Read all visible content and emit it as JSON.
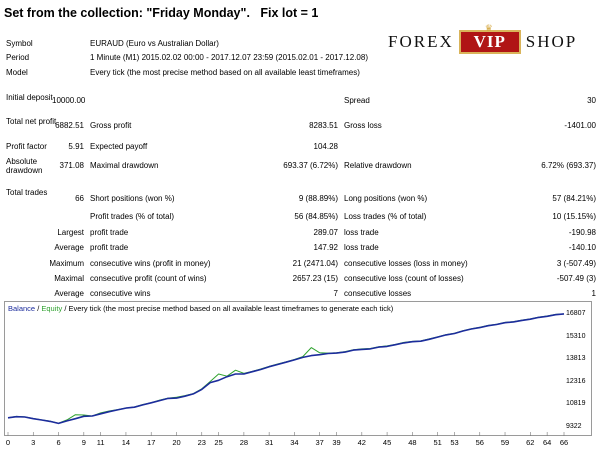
{
  "title": "Set from the collection: \"Friday Monday\".   Fix lot = 1",
  "logo": {
    "left": "FOREX",
    "badge": "VIP",
    "right": "SHOP",
    "colors": {
      "badge_bg": "#b01515",
      "badge_border": "#d9b45a"
    }
  },
  "header": {
    "symbol_label": "Symbol",
    "symbol_value": "EURAUD (Euro vs Australian Dollar)",
    "period_label": "Period",
    "period_value": "1 Minute (M1) 2015.02.02 00:00 - 2017.12.07 23:59 (2015.02.01 - 2017.12.08)",
    "model_label": "Model",
    "model_value": "Every tick (the most precise method based on all available least timeframes)"
  },
  "stats": {
    "initial_deposit_label": "Initial deposit",
    "initial_deposit_value": "10000.00",
    "spread_label": "Spread",
    "spread_value": "30",
    "total_net_profit_label": "Total net profit",
    "total_net_profit_value": "6882.51",
    "gross_profit_label": "Gross profit",
    "gross_profit_value": "8283.51",
    "gross_loss_label": "Gross loss",
    "gross_loss_value": "-1401.00",
    "profit_factor_label": "Profit factor",
    "profit_factor_value": "5.91",
    "expected_payoff_label": "Expected payoff",
    "expected_payoff_value": "104.28",
    "absolute_drawdown_label": "Absolute drawdown",
    "absolute_drawdown_value": "371.08",
    "maximal_drawdown_label": "Maximal drawdown",
    "maximal_drawdown_value": "693.37 (6.72%)",
    "relative_drawdown_label": "Relative drawdown",
    "relative_drawdown_value": "6.72% (693.37)",
    "total_trades_label": "Total trades",
    "total_trades_value": "66",
    "short_positions_label": "Short positions (won %)",
    "short_positions_value": "9 (88.89%)",
    "long_positions_label": "Long positions (won %)",
    "long_positions_value": "57 (84.21%)",
    "profit_trades_label": "Profit trades (% of total)",
    "profit_trades_value": "56 (84.85%)",
    "loss_trades_label": "Loss trades (% of total)",
    "loss_trades_value": "10 (15.15%)",
    "largest_label": "Largest",
    "largest_profit_label": "profit trade",
    "largest_profit_value": "289.07",
    "largest_loss_label": "loss trade",
    "largest_loss_value": "-190.98",
    "average_label": "Average",
    "average_profit_label": "profit trade",
    "average_profit_value": "147.92",
    "average_loss_label": "loss trade",
    "average_loss_value": "-140.10",
    "maximum_label": "Maximum",
    "max_cons_wins_label": "consecutive wins (profit in money)",
    "max_cons_wins_value": "21 (2471.04)",
    "max_cons_losses_label": "consecutive losses (loss in money)",
    "max_cons_losses_value": "3 (-507.49)",
    "maximal_label": "Maximal",
    "maximal_cons_profit_label": "consecutive profit (count of wins)",
    "maximal_cons_profit_value": "2657.23 (15)",
    "maximal_cons_loss_label": "consecutive loss (count of losses)",
    "maximal_cons_loss_value": "-507.49 (3)",
    "avg_cons_label": "Average",
    "avg_cons_wins_label": "consecutive wins",
    "avg_cons_wins_value": "7",
    "avg_cons_losses_label": "consecutive losses",
    "avg_cons_losses_value": "1"
  },
  "chart_legend": {
    "balance": "Balance",
    "sep1": " / ",
    "equity": "Equity",
    "rest": " / Every tick (the most precise method based on all available least timeframes to generate each tick)"
  },
  "chart_data": {
    "type": "line",
    "title": "",
    "xlabel": "",
    "ylabel": "",
    "xlim": [
      0,
      66
    ],
    "ylim": [
      9322,
      16807
    ],
    "x_ticks": [
      "0",
      "3",
      "6",
      "9",
      "11",
      "14",
      "17",
      "20",
      "23",
      "25",
      "28",
      "31",
      "34",
      "37",
      "39",
      "42",
      "45",
      "48",
      "51",
      "53",
      "56",
      "59",
      "62",
      "64",
      "66"
    ],
    "y_ticks": [
      "16807",
      "15310",
      "13813",
      "12316",
      "10819",
      "9322"
    ],
    "colors": {
      "balance": "#1c2c9c",
      "equity": "#2fa22f"
    },
    "series": [
      {
        "name": "Balance",
        "x": [
          0,
          1,
          2,
          3,
          4,
          5,
          6,
          7,
          8,
          9,
          10,
          11,
          12,
          13,
          14,
          15,
          16,
          17,
          18,
          19,
          20,
          21,
          22,
          23,
          24,
          25,
          26,
          27,
          28,
          29,
          30,
          31,
          32,
          33,
          34,
          35,
          36,
          37,
          38,
          39,
          40,
          41,
          42,
          43,
          44,
          45,
          46,
          47,
          48,
          49,
          50,
          51,
          52,
          53,
          54,
          55,
          56,
          57,
          58,
          59,
          60,
          61,
          62,
          63,
          64,
          65,
          66
        ],
        "values": [
          10000,
          10070,
          10050,
          9940,
          9850,
          9760,
          9629,
          9790,
          9940,
          10100,
          10120,
          10260,
          10400,
          10520,
          10640,
          10700,
          10850,
          10990,
          11140,
          11280,
          11300,
          11430,
          11580,
          11880,
          12330,
          12480,
          12720,
          12900,
          12900,
          13050,
          13200,
          13380,
          13530,
          13680,
          13830,
          14000,
          14120,
          14180,
          14260,
          14280,
          14350,
          14480,
          14530,
          14560,
          14680,
          14730,
          14840,
          14960,
          15040,
          15070,
          15200,
          15340,
          15490,
          15580,
          15750,
          15880,
          15970,
          16100,
          16180,
          16300,
          16350,
          16450,
          16530,
          16650,
          16720,
          16830,
          16882
        ]
      },
      {
        "name": "Equity",
        "x": [
          0,
          1,
          2,
          3,
          4,
          5,
          6,
          7,
          8,
          9,
          10,
          11,
          12,
          13,
          14,
          15,
          16,
          17,
          18,
          19,
          20,
          21,
          22,
          23,
          24,
          25,
          26,
          27,
          28,
          29,
          30,
          31,
          32,
          33,
          34,
          35,
          36,
          37,
          38,
          39,
          40,
          41,
          42,
          43,
          44,
          45,
          46,
          47,
          48,
          49,
          50,
          51,
          52,
          53,
          54,
          55,
          56,
          57,
          58,
          59,
          60,
          61,
          62,
          63,
          64,
          65,
          66
        ],
        "values": [
          10000,
          10090,
          10060,
          9950,
          9860,
          9780,
          9640,
          9860,
          10200,
          10180,
          10120,
          10320,
          10450,
          10540,
          10650,
          10710,
          10880,
          11000,
          11170,
          11300,
          11360,
          11470,
          11600,
          11920,
          12400,
          12900,
          12750,
          13150,
          12940,
          13080,
          13230,
          13410,
          13560,
          13700,
          13860,
          14050,
          14650,
          14300,
          14280,
          14300,
          14380,
          14500,
          14560,
          14590,
          14700,
          14760,
          14860,
          14990,
          15060,
          15090,
          15230,
          15360,
          15510,
          15600,
          15770,
          15900,
          15990,
          16120,
          16200,
          16320,
          16370,
          16470,
          16550,
          16670,
          16740,
          16850,
          16882
        ]
      }
    ]
  }
}
